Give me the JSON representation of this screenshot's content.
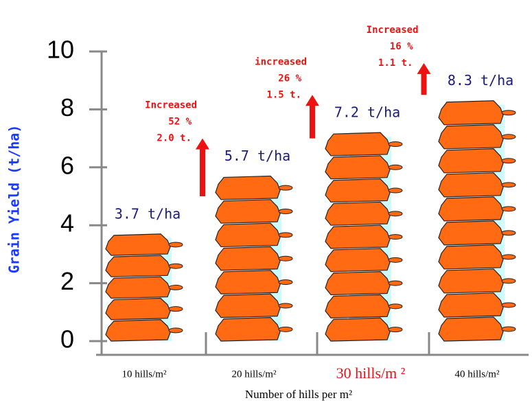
{
  "chart_data": {
    "type": "bar",
    "y_label": "Grain Yield (t/ha)",
    "x_label": "Number of hills per m²",
    "categories": [
      "10 hills/m²",
      "20 hills/m²",
      "30 hills/m ²",
      "40 hills/m²"
    ],
    "highlight_category": 2,
    "values": [
      3.7,
      5.7,
      7.2,
      8.3
    ],
    "value_labels": [
      "3.7 t/ha",
      "5.7 t/ha",
      "7.2 t/ha",
      "8.3 t/ha"
    ],
    "color": "#ff6a13",
    "ylim": [
      0,
      10
    ],
    "yticks": [
      0,
      2,
      4,
      6,
      8,
      10
    ],
    "annotations": [
      {
        "lines": [
          "Increased",
          "52 %",
          "2.0 t."
        ]
      },
      {
        "lines": [
          "increased",
          "26 %",
          "1.5 t."
        ]
      },
      {
        "lines": [
          "Increased",
          "16 %",
          "1.1 t."
        ]
      }
    ]
  }
}
